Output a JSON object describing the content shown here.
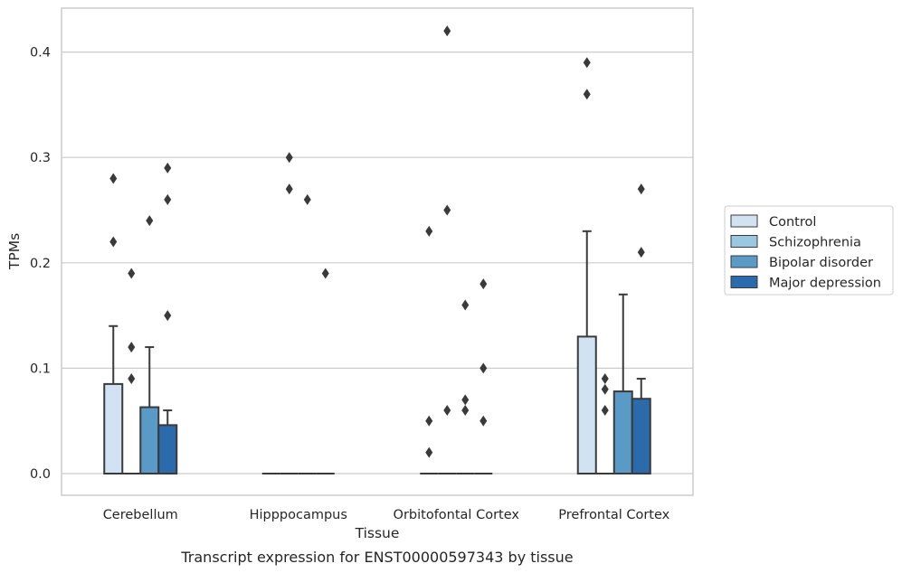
{
  "chart_data": {
    "type": "bar",
    "caption": "Transcript expression for ENST00000597343 by tissue",
    "xlabel": "Tissue",
    "ylabel": "TPMs",
    "ylim": [
      -0.02,
      0.44
    ],
    "yticks": [
      0.0,
      0.1,
      0.2,
      0.3,
      0.4
    ],
    "ytick_labels": [
      "0.0",
      "0.1",
      "0.2",
      "0.3",
      "0.4"
    ],
    "grid": true,
    "legend_position": "right",
    "categories": [
      "Cerebellum",
      "Hipppocampus",
      "Orbitofontal Cortex",
      "Prefrontal Cortex"
    ],
    "series": [
      {
        "name": "Control",
        "color": "#d1e2f2",
        "values": [
          0.085,
          0.0,
          0.0,
          0.13
        ],
        "whisker_high": [
          0.14,
          0.0,
          0.0,
          0.23
        ],
        "outliers": [
          [
            0.28,
            0.22
          ],
          [],
          [
            0.23,
            0.05,
            0.02
          ],
          [
            0.39,
            0.36
          ]
        ]
      },
      {
        "name": "Schizophrenia",
        "color": "#9ac8e0",
        "values": [
          0.0,
          0.0,
          0.0,
          0.0
        ],
        "whisker_high": [
          0.0,
          0.0,
          0.0,
          0.0
        ],
        "outliers": [
          [
            0.19,
            0.12,
            0.09
          ],
          [
            0.3,
            0.27
          ],
          [
            0.42,
            0.25,
            0.06
          ],
          [
            0.09,
            0.08,
            0.06
          ]
        ]
      },
      {
        "name": "Bipolar disorder",
        "color": "#5a9ac6",
        "values": [
          0.063,
          0.0,
          0.0,
          0.078
        ],
        "whisker_high": [
          0.12,
          0.0,
          0.0,
          0.17
        ],
        "outliers": [
          [
            0.24
          ],
          [
            0.26
          ],
          [
            0.16,
            0.07,
            0.06
          ],
          []
        ]
      },
      {
        "name": "Major depression",
        "color": "#2b6aab",
        "values": [
          0.046,
          0.0,
          0.0,
          0.071
        ],
        "whisker_high": [
          0.06,
          0.0,
          0.0,
          0.09
        ],
        "outliers": [
          [
            0.29,
            0.26,
            0.15
          ],
          [
            0.19
          ],
          [
            0.18,
            0.1,
            0.05
          ],
          [
            0.27,
            0.21
          ]
        ]
      }
    ]
  }
}
